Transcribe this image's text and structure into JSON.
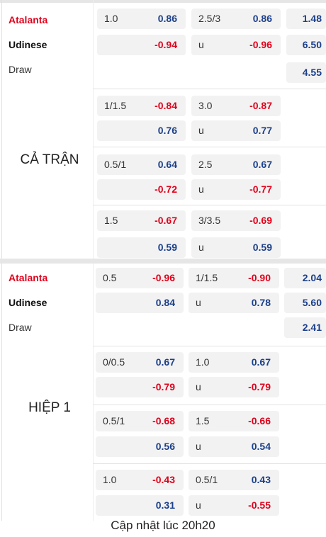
{
  "sections": [
    {
      "label": "CẢ TRẬN",
      "teams": [
        "Atalanta",
        "Udinese",
        "Draw"
      ],
      "groups": [
        [
          {
            "hdp": "1.0",
            "hdp_odds": "0.86",
            "ou": "2.5/3",
            "ou_odds": "0.86",
            "x12": "1.48"
          },
          {
            "hdp_odds": "-0.94",
            "ou": "u",
            "ou_odds": "-0.96",
            "x12": "6.50"
          },
          {
            "x12": "4.55"
          }
        ],
        [
          {
            "hdp": "1/1.5",
            "hdp_odds": "-0.84",
            "ou": "3.0",
            "ou_odds": "-0.87"
          },
          {
            "hdp_odds": "0.76",
            "ou": "u",
            "ou_odds": "0.77"
          }
        ],
        [
          {
            "hdp": "0.5/1",
            "hdp_odds": "0.64",
            "ou": "2.5",
            "ou_odds": "0.67"
          },
          {
            "hdp_odds": "-0.72",
            "ou": "u",
            "ou_odds": "-0.77"
          }
        ],
        [
          {
            "hdp": "1.5",
            "hdp_odds": "-0.67",
            "ou": "3/3.5",
            "ou_odds": "-0.69"
          },
          {
            "hdp_odds": "0.59",
            "ou": "u",
            "ou_odds": "0.59"
          }
        ]
      ]
    },
    {
      "label": "HIỆP 1",
      "teams": [
        "Atalanta",
        "Udinese",
        "Draw"
      ],
      "groups": [
        [
          {
            "hdp": "0.5",
            "hdp_odds": "-0.96",
            "ou": "1/1.5",
            "ou_odds": "-0.90",
            "x12": "2.04"
          },
          {
            "hdp_odds": "0.84",
            "ou": "u",
            "ou_odds": "0.78",
            "x12": "5.60"
          },
          {
            "x12": "2.41"
          }
        ],
        [
          {
            "hdp": "0/0.5",
            "hdp_odds": "0.67",
            "ou": "1.0",
            "ou_odds": "0.67"
          },
          {
            "hdp_odds": "-0.79",
            "ou": "u",
            "ou_odds": "-0.79"
          }
        ],
        [
          {
            "hdp": "0.5/1",
            "hdp_odds": "-0.68",
            "ou": "1.5",
            "ou_odds": "-0.66"
          },
          {
            "hdp_odds": "0.56",
            "ou": "u",
            "ou_odds": "0.54"
          }
        ],
        [
          {
            "hdp": "1.0",
            "hdp_odds": "-0.43",
            "ou": "0.5/1",
            "ou_odds": "0.43"
          },
          {
            "hdp_odds": "0.31",
            "ou": "u",
            "ou_odds": "-0.55"
          }
        ]
      ]
    }
  ],
  "footer": "Cập nhật lúc 20h20"
}
